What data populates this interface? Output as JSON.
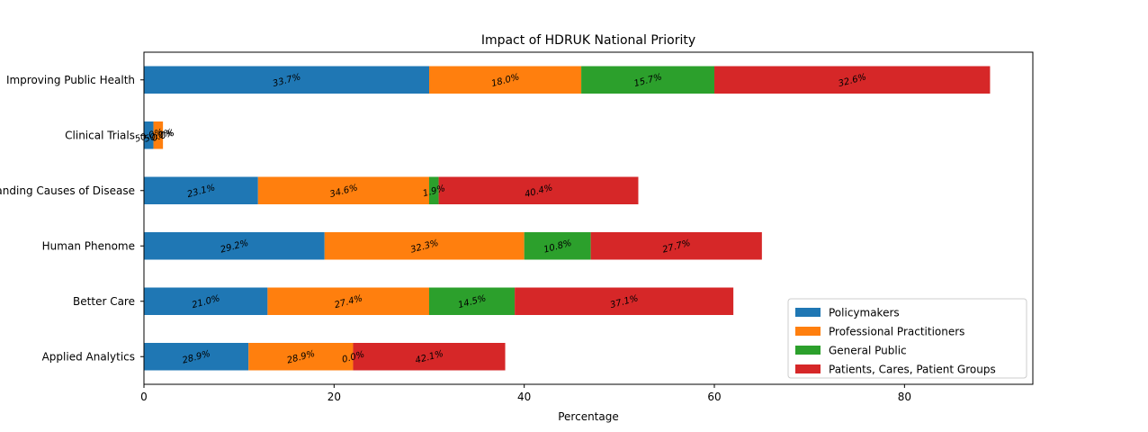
{
  "chart_data": {
    "type": "bar",
    "orientation": "horizontal",
    "stacked": true,
    "title": "Impact of HDRUK National Priority",
    "xlabel": "Percentage",
    "ylabel": "",
    "xlim": [
      0,
      93.5
    ],
    "xticks": [
      0,
      20,
      40,
      60,
      80
    ],
    "categories": [
      "Improving Public Health",
      "Clinical Trials",
      "Understanding Causes of Disease",
      "Human Phenome",
      "Better Care",
      "Applied Analytics"
    ],
    "legend_position": "lower-right",
    "grid": false,
    "series": [
      {
        "name": "Policymakers",
        "color": "#1f77b4",
        "values": [
          30,
          1,
          12,
          19,
          13,
          11
        ],
        "labels": [
          "33.7%",
          "50.0%",
          "23.1%",
          "29.2%",
          "21.0%",
          "28.9%"
        ]
      },
      {
        "name": "Professional Practitioners",
        "color": "#ff7f0e",
        "values": [
          16,
          1,
          18,
          21,
          17,
          11
        ],
        "labels": [
          "18.0%",
          "50.0%",
          "34.6%",
          "32.3%",
          "27.4%",
          "28.9%"
        ]
      },
      {
        "name": "General Public",
        "color": "#2ca02c",
        "values": [
          14,
          0,
          1,
          7,
          9,
          0
        ],
        "labels": [
          "15.7%",
          "0.0%",
          "1.9%",
          "10.8%",
          "14.5%",
          "0.0%"
        ]
      },
      {
        "name": "Patients, Cares, Patient Groups",
        "color": "#d62728",
        "values": [
          29,
          0,
          21,
          18,
          23,
          16
        ],
        "labels": [
          "32.6%",
          "0.0%",
          "40.4%",
          "27.7%",
          "37.1%",
          "42.1%"
        ]
      }
    ]
  }
}
